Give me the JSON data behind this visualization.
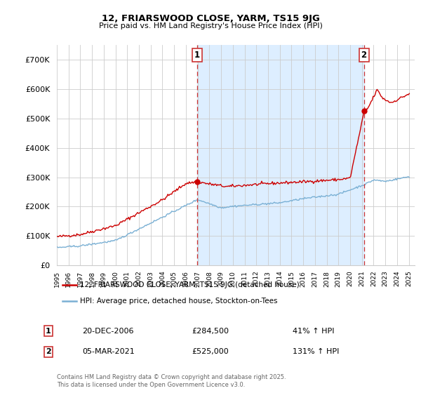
{
  "title1": "12, FRIARSWOOD CLOSE, YARM, TS15 9JG",
  "title2": "Price paid vs. HM Land Registry's House Price Index (HPI)",
  "ylim": [
    0,
    750000
  ],
  "yticks": [
    0,
    100000,
    200000,
    300000,
    400000,
    500000,
    600000,
    700000
  ],
  "ytick_labels": [
    "£0",
    "£100K",
    "£200K",
    "£300K",
    "£400K",
    "£500K",
    "£600K",
    "£700K"
  ],
  "legend_line1": "12, FRIARSWOOD CLOSE, YARM, TS15 9JG (detached house)",
  "legend_line2": "HPI: Average price, detached house, Stockton-on-Tees",
  "annotation1_label": "1",
  "annotation1_date": "20-DEC-2006",
  "annotation1_price": "£284,500",
  "annotation1_hpi": "41% ↑ HPI",
  "annotation2_label": "2",
  "annotation2_date": "05-MAR-2021",
  "annotation2_price": "£525,000",
  "annotation2_hpi": "131% ↑ HPI",
  "footer": "Contains HM Land Registry data © Crown copyright and database right 2025.\nThis data is licensed under the Open Government Licence v3.0.",
  "red_color": "#cc0000",
  "blue_color": "#7ab0d4",
  "shade_color": "#ddeeff",
  "dashed_color": "#cc3333",
  "marker1_x": 2006.96,
  "marker1_y": 284500,
  "marker2_x": 2021.17,
  "marker2_y": 525000,
  "vline1_x": 2006.96,
  "vline2_x": 2021.17,
  "background_color": "#ffffff",
  "grid_color": "#cccccc",
  "xlim_left": 1995.0,
  "xlim_right": 2025.5
}
